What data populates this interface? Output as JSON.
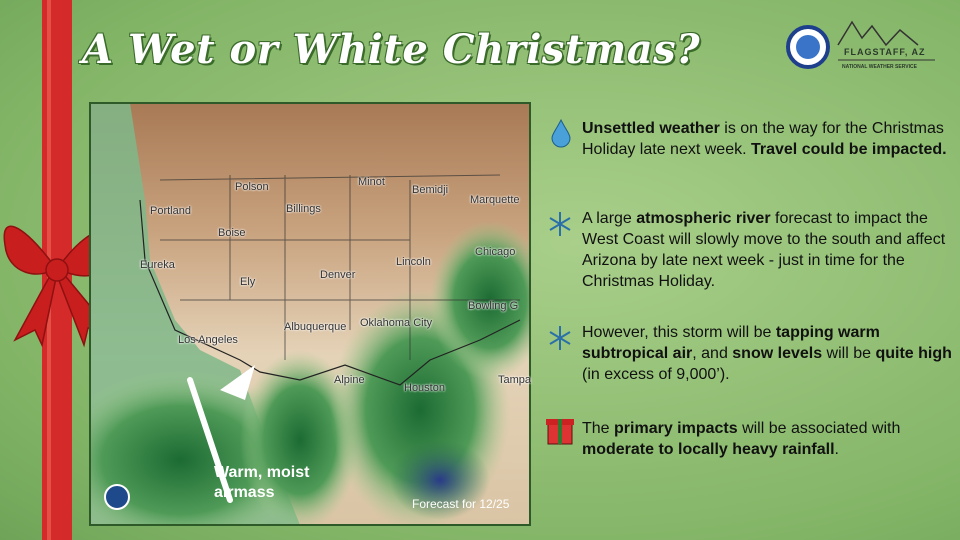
{
  "header": {
    "title": "A Wet or White Christmas?",
    "logo": {
      "office": "FLAGSTAFF, AZ",
      "agency": "NATIONAL WEATHER SERVICE"
    }
  },
  "map": {
    "cities": [
      "Polson",
      "Minot",
      "Bemidji",
      "Marquette",
      "Portland",
      "Billings",
      "Boise",
      "Chicago",
      "Eureka",
      "Denver",
      "Lincoln",
      "Ely",
      "Bowling G",
      "Los Angeles",
      "Albuquerque",
      "Oklahoma City",
      "Alpine",
      "Houston",
      "Tampa"
    ],
    "annotation": "Warm, moist airmass",
    "footer": "Forecast for 12/25"
  },
  "bullets": [
    {
      "segments": [
        {
          "text": "Unsettled weather",
          "bold": true
        },
        {
          "text": " is on the way for the Christmas Holiday late next week. "
        },
        {
          "text": "Travel could be impacted.",
          "bold": true
        }
      ]
    },
    {
      "segments": [
        {
          "text": "A large "
        },
        {
          "text": "atmospheric river",
          "bold": true
        },
        {
          "text": " forecast to impact the West Coast will slowly move to the south and affect Arizona by late next week - just in time for the Christmas Holiday."
        }
      ]
    },
    {
      "segments": [
        {
          "text": "However, this storm will be "
        },
        {
          "text": "tapping warm subtropical air",
          "bold": true
        },
        {
          "text": ", and "
        },
        {
          "text": "snow levels",
          "bold": true
        },
        {
          "text": " will be "
        },
        {
          "text": "quite high",
          "bold": true
        },
        {
          "text": " (in excess of 9,000’)."
        }
      ]
    },
    {
      "segments": [
        {
          "text": "The "
        },
        {
          "text": "primary impacts",
          "bold": true
        },
        {
          "text": " will be associated with "
        },
        {
          "text": "moderate to locally heavy rainfall",
          "bold": true
        },
        {
          "text": "."
        }
      ]
    }
  ]
}
